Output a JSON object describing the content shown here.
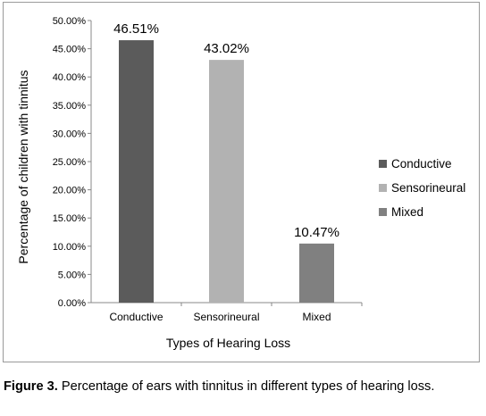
{
  "chart_data": {
    "type": "bar",
    "categories": [
      "Conductive",
      "Sensorineural",
      "Mixed"
    ],
    "values": [
      46.51,
      43.02,
      10.47
    ],
    "data_labels": [
      "46.51%",
      "43.02%",
      "10.47%"
    ],
    "colors": [
      "#5b5b5b",
      "#b2b2b2",
      "#808080"
    ],
    "xlabel": "Types of Hearing Loss",
    "ylabel": "Percentage of children with tinnitus",
    "ylim": [
      0,
      50
    ],
    "yticks": [
      "0.00%",
      "5.00%",
      "10.00%",
      "15.00%",
      "20.00%",
      "25.00%",
      "30.00%",
      "35.00%",
      "40.00%",
      "45.00%",
      "50.00%"
    ],
    "grid": false,
    "legend": {
      "placement": "right",
      "entries": [
        "Conductive",
        "Sensorineural",
        "Mixed"
      ]
    }
  },
  "caption": {
    "label": "Figure 3.",
    "text": " Percentage of ears with tinnitus in different types of hearing loss."
  }
}
